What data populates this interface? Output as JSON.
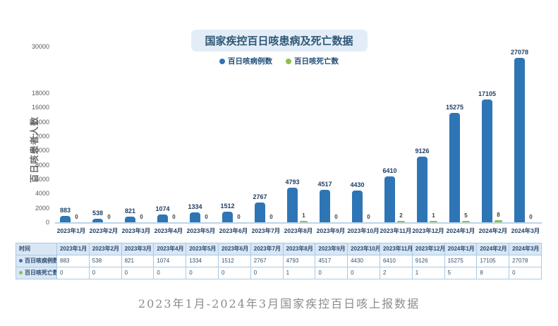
{
  "page": {
    "caption": "2023年1月-2024年3月国家疾控百日咳上报数据"
  },
  "chart_data": {
    "type": "bar",
    "title": "国家疾控百日咳患病及死亡数据",
    "ylabel": "百日咳患者人数",
    "xlabel": "",
    "categories": [
      "2023年1月",
      "2023年2月",
      "2023年3月",
      "2023年4月",
      "2023年5月",
      "2023年6月",
      "2023年7月",
      "2023年8月",
      "2023年9月",
      "2023年10月",
      "2023年11月",
      "2023年12月",
      "2024年1月",
      "2024年2月",
      "2024年3月"
    ],
    "series": [
      {
        "name": "百日咳病例数",
        "color": "#2E75B6",
        "values": [
          883,
          538,
          821,
          1074,
          1334,
          1512,
          2767,
          4793,
          4517,
          4430,
          6410,
          9126,
          15275,
          17105,
          27078
        ]
      },
      {
        "name": "百日咳死亡数",
        "color": "#8FC04C",
        "values": [
          0,
          0,
          0,
          0,
          0,
          0,
          0,
          1,
          0,
          0,
          2,
          1,
          5,
          8,
          0
        ]
      }
    ],
    "yticks": [
      0,
      2000,
      4000,
      6000,
      8000,
      10000,
      12000,
      14000,
      16000,
      18000,
      30000
    ],
    "ylim": [
      0,
      30000
    ],
    "axis_break": {
      "compressed_above": 18000
    },
    "grid": false,
    "legend_position": "top",
    "data_labels": true
  },
  "table": {
    "corner_label": "时间"
  },
  "colors": {
    "cases_bar": "#2E75B6",
    "deaths_bar": "#8FC04C",
    "title_box_bg": "#e3edf7",
    "title_text": "#2f5876",
    "axis_line": "#bcd4e8",
    "table_header_bg": "#d9e7f5",
    "table_border": "#a8c9e6"
  }
}
